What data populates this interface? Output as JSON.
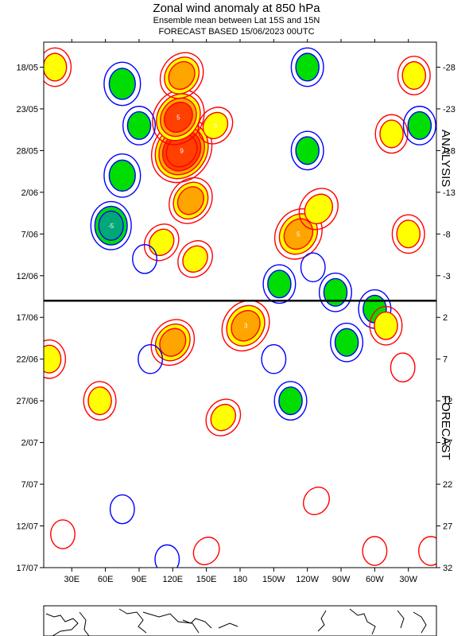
{
  "header": {
    "title": "Zonal wind anomaly at 850 hPa",
    "subtitle": "Ensemble mean between  Lat 15S and 15N",
    "forecast_line": "FORECAST  BASED 15/06/2023 00UTC"
  },
  "side_labels": {
    "analysis": "ANALYSIS",
    "forecast": "FORECAST"
  },
  "colors": {
    "positive_contour": "#ff0000",
    "negative_contour": "#0000ff",
    "fill_yellow": "#ffff00",
    "fill_orange": "#ffa500",
    "fill_red": "#ff4000",
    "fill_green": "#00dd00",
    "fill_teal": "#00a878"
  },
  "chart_data": {
    "type": "heatmap",
    "title": "Zonal wind anomaly at 850 hPa",
    "xlabel": "",
    "ylabel": "",
    "x_ticks": [
      "30E",
      "60E",
      "90E",
      "120E",
      "150E",
      "180",
      "150W",
      "120W",
      "90W",
      "60W",
      "30W"
    ],
    "x_tick_lon": [
      30,
      60,
      90,
      120,
      150,
      180,
      210,
      240,
      270,
      300,
      330
    ],
    "x_range": [
      5,
      355
    ],
    "date_ticks": [
      "18/05",
      "23/05",
      "28/05",
      "2/06",
      "7/06",
      "12/06",
      "17/06",
      "22/06",
      "27/06",
      "2/07",
      "7/07",
      "12/07",
      "17/07"
    ],
    "date_tick_day": [
      -28,
      -23,
      -18,
      -13,
      -8,
      -3,
      2,
      7,
      12,
      17,
      22,
      27,
      32
    ],
    "right_ticks": [
      "-28",
      "-23",
      "-18",
      "-13",
      "-8",
      "-3",
      "2",
      "7",
      "12",
      "17",
      "22",
      "27",
      "32"
    ],
    "day_range": [
      -31,
      32
    ],
    "analysis_forecast_split_day": 0,
    "contour_levels": [
      -5,
      -3,
      -1,
      1,
      3,
      5,
      7,
      9
    ],
    "contour_labels_shown": [
      "1",
      "-1",
      "3",
      "5",
      "9"
    ],
    "features": [
      {
        "lon": 128,
        "day": -18,
        "value": 9,
        "label": "9"
      },
      {
        "lon": 125,
        "day": -22,
        "value": 7,
        "label": "5"
      },
      {
        "lon": 136,
        "day": -12,
        "value": 5
      },
      {
        "lon": 232,
        "day": -8,
        "value": 6,
        "label": "5"
      },
      {
        "lon": 250,
        "day": -11,
        "value": 4
      },
      {
        "lon": 128,
        "day": -27,
        "value": 5
      },
      {
        "lon": 158,
        "day": -21,
        "value": 3,
        "label": "3"
      },
      {
        "lon": 15,
        "day": -28,
        "value": 3
      },
      {
        "lon": 335,
        "day": -27,
        "value": 3
      },
      {
        "lon": 315,
        "day": -20,
        "value": 3
      },
      {
        "lon": 330,
        "day": -8,
        "value": 3
      },
      {
        "lon": 110,
        "day": -7,
        "value": 3
      },
      {
        "lon": 140,
        "day": -5,
        "value": 3
      },
      {
        "lon": 240,
        "day": -28,
        "value": -3
      },
      {
        "lon": 240,
        "day": -18,
        "value": -3
      },
      {
        "lon": 75,
        "day": -26,
        "value": -4
      },
      {
        "lon": 75,
        "day": -15,
        "value": -4
      },
      {
        "lon": 65,
        "day": -9,
        "value": -5,
        "label": "-5"
      },
      {
        "lon": 90,
        "day": -21,
        "value": -3
      },
      {
        "lon": 265,
        "day": -1,
        "value": -3
      },
      {
        "lon": 215,
        "day": -2,
        "value": -3
      },
      {
        "lon": 340,
        "day": -21,
        "value": -3
      },
      {
        "lon": 95,
        "day": -5,
        "value": -1
      },
      {
        "lon": 245,
        "day": -4,
        "value": -1
      },
      {
        "lon": 300,
        "day": 1,
        "value": -3
      },
      {
        "lon": 120,
        "day": 5,
        "value": 5
      },
      {
        "lon": 185,
        "day": 3,
        "value": 6,
        "label": "3"
      },
      {
        "lon": 10,
        "day": 7,
        "value": 3
      },
      {
        "lon": 310,
        "day": 3,
        "value": 3
      },
      {
        "lon": 55,
        "day": 12,
        "value": 3
      },
      {
        "lon": 165,
        "day": 14,
        "value": 3
      },
      {
        "lon": 325,
        "day": 8,
        "value": 1
      },
      {
        "lon": 225,
        "day": 12,
        "value": -3
      },
      {
        "lon": 275,
        "day": 5,
        "value": -3
      },
      {
        "lon": 210,
        "day": 7,
        "value": -1
      },
      {
        "lon": 100,
        "day": 7,
        "value": -1
      },
      {
        "lon": 75,
        "day": 25,
        "value": -1
      },
      {
        "lon": 115,
        "day": 31,
        "value": -1
      },
      {
        "lon": 248,
        "day": 24,
        "value": 1
      },
      {
        "lon": 150,
        "day": 30,
        "value": 1
      },
      {
        "lon": 300,
        "day": 30,
        "value": 1
      },
      {
        "lon": 350,
        "day": 30,
        "value": 1
      },
      {
        "lon": 22,
        "day": 28,
        "value": 1
      }
    ]
  },
  "map_strip": {
    "description_label": ""
  }
}
